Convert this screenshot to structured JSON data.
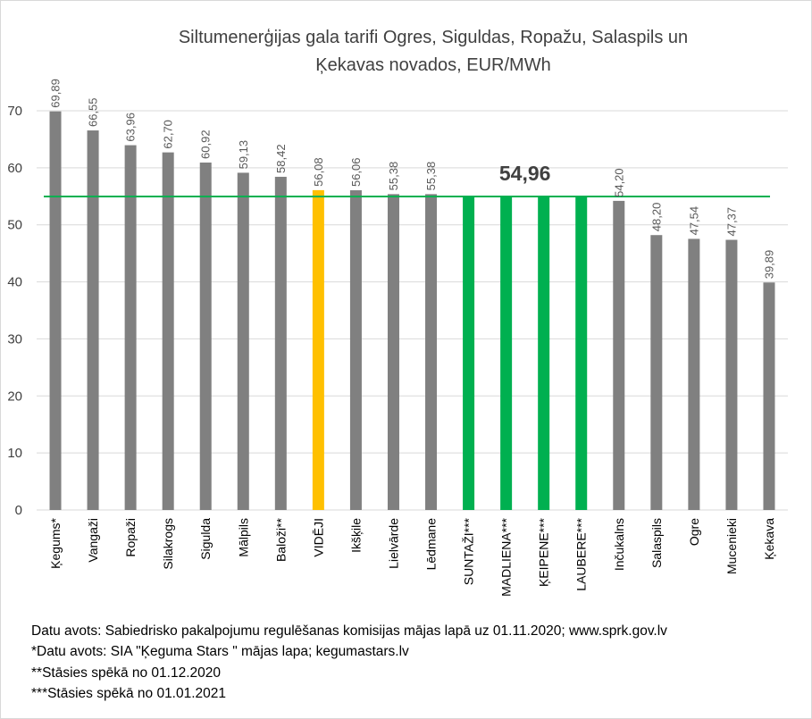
{
  "chart_data": {
    "type": "bar",
    "title_lines": [
      "Siltumenerģijas gala tarifi Ogres, Siguldas, Ropažu, Salaspils un",
      "Ķekavas novados, EUR/MWh"
    ],
    "categories": [
      "Ķegums*",
      "Vangaži",
      "Ropaži",
      "Silakrogs",
      "Sigulda",
      "Mālpils",
      "Baloži**",
      "VIDĒJI",
      "Ikšķile",
      "Lielvārde",
      "Lēdmane",
      "SUNTAŽI***",
      "MADLIENA***",
      "ĶEIPENE***",
      "LAUBERE***",
      "Inčukalns",
      "Salaspils",
      "Ogre",
      "Mucenieki",
      "Ķekava"
    ],
    "values": [
      69.89,
      66.55,
      63.96,
      62.7,
      60.92,
      59.13,
      58.42,
      56.08,
      56.06,
      55.38,
      55.38,
      54.96,
      54.96,
      54.96,
      54.96,
      54.2,
      48.2,
      47.54,
      47.37,
      39.89
    ],
    "data_labels": [
      "69,89",
      "66,55",
      "63,96",
      "62,70",
      "60,92",
      "59,13",
      "58,42",
      "56,08",
      "56,06",
      "55,38",
      "55,38",
      "",
      "",
      "",
      "",
      "54,20",
      "48,20",
      "47,54",
      "47,37",
      "39,89"
    ],
    "bar_colors": [
      "#808080",
      "#808080",
      "#808080",
      "#808080",
      "#808080",
      "#808080",
      "#808080",
      "#ffc000",
      "#808080",
      "#808080",
      "#808080",
      "#00b050",
      "#00b050",
      "#00b050",
      "#00b050",
      "#808080",
      "#808080",
      "#808080",
      "#808080",
      "#808080"
    ],
    "reference_line": {
      "value": 54.96,
      "label": "54,96",
      "color": "#00b050"
    },
    "yticks": [
      0,
      10,
      20,
      30,
      40,
      50,
      60,
      70
    ],
    "ylim": [
      0,
      70
    ],
    "grid": true,
    "xlabel": "",
    "ylabel": ""
  },
  "notes": [
    "Datu avots: Sabiedrisko pakalpojumu regulēšanas komisijas mājas lapā uz 01.11.2020; www.sprk.gov.lv",
    "*Datu avots: SIA \"Ķeguma Stars \" mājas lapa; kegumastars.lv",
    "**Stāsies spēkā no 01.12.2020",
    "***Stāsies spēkā no 01.01.2021"
  ]
}
